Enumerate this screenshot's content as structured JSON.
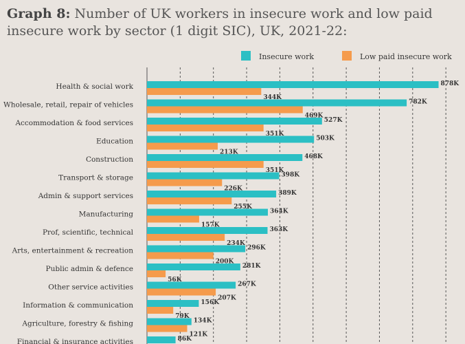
{
  "title": {
    "prefix": "Graph 8:",
    "text": "Number of UK workers in insecure work and low paid insecure work by sector (1 digit SIC), UK, 2021-22:"
  },
  "chart_data": {
    "type": "bar",
    "orientation": "horizontal",
    "categories": [
      "Health & social work",
      "Wholesale, retail, repair of vehicles",
      "Accommodation & food services",
      "Education",
      "Construction",
      "Transport & storage",
      "Admin & support services",
      "Manufacturing",
      "Prof, scientific, technical",
      "Arts, entertainment & recreation",
      "Public admin & defence",
      "Other service activities",
      "Information & communication",
      "Agriculture, forestry & fishing",
      "Financial & insurance activities"
    ],
    "series": [
      {
        "name": "Insecure work",
        "color": "#2bbfc4",
        "values": [
          878,
          782,
          527,
          503,
          468,
          398,
          389,
          364,
          363,
          296,
          281,
          267,
          156,
          134,
          86
        ],
        "labels": [
          "878K",
          "782K",
          "527K",
          "503K",
          "468K",
          "398K",
          "389K",
          "364K",
          "363K",
          "296K",
          "281K",
          "267K",
          "156K",
          "134K",
          "86K"
        ]
      },
      {
        "name": "Low paid insecure work",
        "color": "#f59b4c",
        "values": [
          344,
          469,
          351,
          213,
          351,
          226,
          255,
          157,
          234,
          200,
          56,
          207,
          79,
          121,
          null
        ],
        "labels": [
          "344K",
          "469K",
          "351K",
          "213K",
          "351K",
          "226K",
          "255K",
          "157K",
          "234K",
          "200K",
          "56K",
          "207K",
          "79K",
          "121K",
          null
        ]
      }
    ],
    "xlim": [
      0,
      900
    ],
    "grid": "vertical dashed",
    "legend": "top-right"
  }
}
